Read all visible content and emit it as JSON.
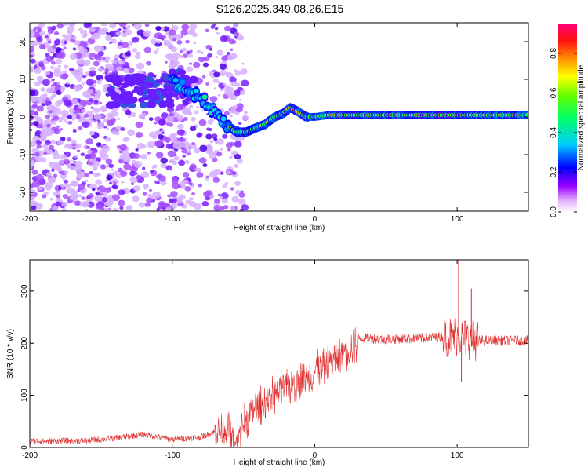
{
  "title": "S126.2025.349.08.26.E15",
  "chart_data": [
    {
      "type": "heatmap",
      "xlabel": "Height of straight line (km)",
      "ylabel": "Frequency (Hz)",
      "xlim": [
        -200,
        150
      ],
      "ylim": [
        -25,
        25
      ],
      "xticks": [
        -200,
        -100,
        0,
        100
      ],
      "yticks": [
        -20,
        -10,
        0,
        10,
        20
      ],
      "colorbar": {
        "label": "Normalized spectral amplitude",
        "range": [
          0.0,
          0.95
        ],
        "ticks": [
          0.0,
          0.2,
          0.4,
          0.6,
          0.8
        ]
      },
      "ridge": {
        "x": [
          -100,
          -90,
          -80,
          -70,
          -62,
          -55,
          -48,
          -42,
          -35,
          -28,
          -22,
          -17,
          -12,
          -6,
          0,
          10,
          30,
          60,
          90,
          100,
          110,
          130,
          150
        ],
        "y": [
          10,
          7,
          5,
          1,
          -2,
          -4,
          -4,
          -3,
          -2,
          0,
          1,
          2.5,
          1.5,
          0,
          0,
          0.5,
          0.5,
          0.5,
          0.5,
          0.5,
          0.5,
          0.5,
          0.5
        ]
      }
    },
    {
      "type": "line",
      "xlabel": "Height of straight line (km)",
      "ylabel": "SNR (10 * v/v)",
      "xlim": [
        -200,
        150
      ],
      "ylim": [
        0,
        360
      ],
      "xticks": [
        -200,
        -100,
        0,
        100
      ],
      "yticks": [
        0,
        100,
        200,
        300
      ],
      "color": "#e03030",
      "envelope": {
        "x": [
          -200,
          -160,
          -140,
          -120,
          -100,
          -80,
          -70,
          -60,
          -55,
          -50,
          -40,
          -30,
          -20,
          -10,
          0,
          10,
          20,
          30,
          50,
          80,
          100,
          110,
          120,
          150
        ],
        "y": [
          12,
          13,
          18,
          25,
          15,
          20,
          30,
          40,
          15,
          60,
          90,
          110,
          125,
          140,
          160,
          175,
          195,
          210,
          208,
          210,
          215,
          205,
          205,
          205
        ]
      },
      "spikes": [
        {
          "x": 101,
          "y": 360
        },
        {
          "x": 103,
          "y": 125
        },
        {
          "x": 109,
          "y": 80
        },
        {
          "x": 110,
          "y": 305
        }
      ]
    }
  ]
}
